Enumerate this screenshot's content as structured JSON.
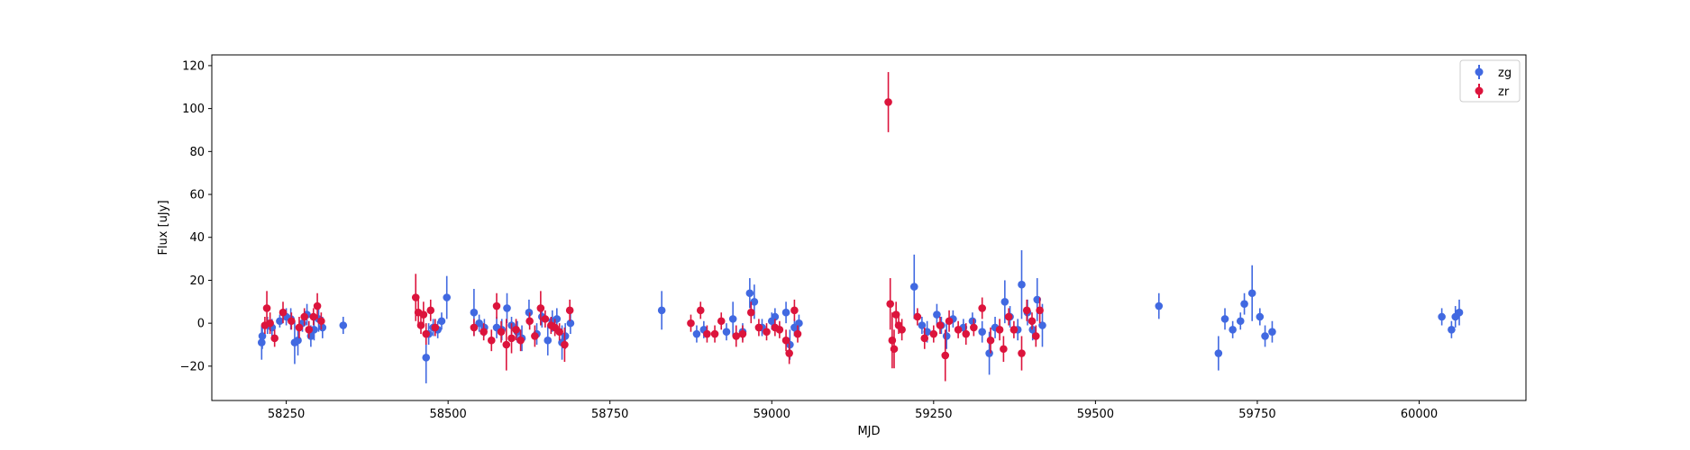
{
  "chart_data": {
    "type": "scatter",
    "title": "",
    "xlabel": "MJD",
    "ylabel": "Flux [uJy]",
    "xlim": [
      58135,
      60165
    ],
    "ylim": [
      -36,
      125
    ],
    "xticks": [
      58250,
      58500,
      58750,
      59000,
      59250,
      59500,
      59750,
      60000
    ],
    "yticks": [
      -20,
      0,
      20,
      40,
      60,
      80,
      100,
      120
    ],
    "grid": false,
    "legend_position": "top-right",
    "error_bars": true,
    "series": [
      {
        "name": "zg",
        "color": "#4169e1",
        "points": [
          [
            58212,
            -9,
            8
          ],
          [
            58213,
            -6,
            6
          ],
          [
            58221,
            -1,
            4
          ],
          [
            58228,
            -2,
            4
          ],
          [
            58240,
            1,
            3
          ],
          [
            58250,
            3,
            4
          ],
          [
            58257,
            2,
            5
          ],
          [
            58263,
            -9,
            10
          ],
          [
            58268,
            -8,
            7
          ],
          [
            58275,
            0,
            4
          ],
          [
            58282,
            4,
            5
          ],
          [
            58288,
            -6,
            5
          ],
          [
            58293,
            -3,
            5
          ],
          [
            58300,
            2,
            6
          ],
          [
            58306,
            -2,
            5
          ],
          [
            58338,
            -1,
            4
          ],
          [
            58466,
            -16,
            12
          ],
          [
            58470,
            -5,
            5
          ],
          [
            58477,
            -2,
            4
          ],
          [
            58484,
            -3,
            4
          ],
          [
            58490,
            1,
            4
          ],
          [
            58498,
            12,
            10
          ],
          [
            58540,
            5,
            11
          ],
          [
            58548,
            0,
            4
          ],
          [
            58556,
            -2,
            4
          ],
          [
            58575,
            -2,
            5
          ],
          [
            58583,
            -3,
            5
          ],
          [
            58591,
            7,
            7
          ],
          [
            58598,
            -1,
            4
          ],
          [
            58607,
            -4,
            5
          ],
          [
            58614,
            -7,
            6
          ],
          [
            58625,
            5,
            6
          ],
          [
            58637,
            -5,
            5
          ],
          [
            58645,
            3,
            5
          ],
          [
            58654,
            -8,
            7
          ],
          [
            58661,
            1,
            5
          ],
          [
            58668,
            2,
            5
          ],
          [
            58676,
            -9,
            8
          ],
          [
            58681,
            -6,
            6
          ],
          [
            58689,
            0,
            5
          ],
          [
            58830,
            6,
            9
          ],
          [
            58884,
            -5,
            4
          ],
          [
            58895,
            -3,
            4
          ],
          [
            58930,
            -4,
            4
          ],
          [
            58940,
            2,
            8
          ],
          [
            58955,
            -4,
            4
          ],
          [
            58966,
            14,
            7
          ],
          [
            58973,
            10,
            8
          ],
          [
            58985,
            -2,
            4
          ],
          [
            59000,
            1,
            4
          ],
          [
            59005,
            3,
            4
          ],
          [
            59022,
            5,
            5
          ],
          [
            59028,
            -10,
            7
          ],
          [
            59035,
            -2,
            4
          ],
          [
            59042,
            0,
            4
          ],
          [
            59220,
            17,
            15
          ],
          [
            59232,
            -1,
            4
          ],
          [
            59240,
            -4,
            5
          ],
          [
            59255,
            4,
            5
          ],
          [
            59262,
            -1,
            4
          ],
          [
            59270,
            -6,
            6
          ],
          [
            59280,
            2,
            4
          ],
          [
            59296,
            -2,
            4
          ],
          [
            59310,
            1,
            4
          ],
          [
            59325,
            -4,
            5
          ],
          [
            59336,
            -14,
            10
          ],
          [
            59345,
            -2,
            5
          ],
          [
            59360,
            10,
            10
          ],
          [
            59368,
            3,
            5
          ],
          [
            59380,
            -3,
            5
          ],
          [
            59386,
            18,
            16
          ],
          [
            59395,
            5,
            6
          ],
          [
            59403,
            -3,
            5
          ],
          [
            59410,
            11,
            10
          ],
          [
            59418,
            -1,
            10
          ],
          [
            59598,
            8,
            6
          ],
          [
            59690,
            -14,
            8
          ],
          [
            59700,
            2,
            5
          ],
          [
            59712,
            -3,
            4
          ],
          [
            59724,
            1,
            4
          ],
          [
            59730,
            9,
            5
          ],
          [
            59742,
            14,
            13
          ],
          [
            59754,
            3,
            4
          ],
          [
            59762,
            -6,
            5
          ],
          [
            59773,
            -4,
            5
          ],
          [
            60035,
            3,
            4
          ],
          [
            60050,
            -3,
            4
          ],
          [
            60056,
            3,
            5
          ],
          [
            60062,
            5,
            6
          ]
        ]
      },
      {
        "name": "zr",
        "color": "#dc143c",
        "points": [
          [
            58217,
            -1,
            4
          ],
          [
            58220,
            7,
            8
          ],
          [
            58225,
            0,
            5
          ],
          [
            58232,
            -7,
            4
          ],
          [
            58245,
            5,
            5
          ],
          [
            58258,
            1,
            4
          ],
          [
            58270,
            -2,
            5
          ],
          [
            58278,
            3,
            4
          ],
          [
            58285,
            -3,
            4
          ],
          [
            58292,
            3,
            4
          ],
          [
            58298,
            8,
            6
          ],
          [
            58304,
            1,
            4
          ],
          [
            58450,
            12,
            11
          ],
          [
            58454,
            5,
            7
          ],
          [
            58458,
            -1,
            4
          ],
          [
            58462,
            4,
            6
          ],
          [
            58466,
            -5,
            5
          ],
          [
            58473,
            6,
            5
          ],
          [
            58480,
            -2,
            4
          ],
          [
            58540,
            -2,
            4
          ],
          [
            58555,
            -4,
            4
          ],
          [
            58567,
            -8,
            5
          ],
          [
            58575,
            8,
            6
          ],
          [
            58582,
            -4,
            5
          ],
          [
            58590,
            -10,
            12
          ],
          [
            58598,
            -7,
            7
          ],
          [
            58605,
            -3,
            5
          ],
          [
            58612,
            -8,
            5
          ],
          [
            58626,
            1,
            4
          ],
          [
            58634,
            -6,
            5
          ],
          [
            58643,
            7,
            8
          ],
          [
            58650,
            2,
            4
          ],
          [
            58659,
            -1,
            4
          ],
          [
            58665,
            -2,
            4
          ],
          [
            58672,
            -4,
            4
          ],
          [
            58680,
            -10,
            8
          ],
          [
            58688,
            6,
            5
          ],
          [
            58875,
            0,
            4
          ],
          [
            58890,
            6,
            4
          ],
          [
            58900,
            -5,
            4
          ],
          [
            58912,
            -5,
            4
          ],
          [
            58922,
            1,
            4
          ],
          [
            58945,
            -6,
            5
          ],
          [
            58955,
            -5,
            4
          ],
          [
            58968,
            5,
            5
          ],
          [
            58980,
            -2,
            4
          ],
          [
            58992,
            -4,
            4
          ],
          [
            59005,
            -2,
            4
          ],
          [
            59012,
            -3,
            4
          ],
          [
            59022,
            -8,
            5
          ],
          [
            59027,
            -14,
            5
          ],
          [
            59035,
            6,
            5
          ],
          [
            59040,
            -5,
            4
          ],
          [
            59180,
            103,
            14
          ],
          [
            59183,
            9,
            12
          ],
          [
            59186,
            -8,
            13
          ],
          [
            59189,
            -12,
            9
          ],
          [
            59192,
            4,
            6
          ],
          [
            59196,
            -1,
            4
          ],
          [
            59201,
            -3,
            5
          ],
          [
            59225,
            3,
            4
          ],
          [
            59236,
            -7,
            5
          ],
          [
            59250,
            -5,
            4
          ],
          [
            59260,
            -1,
            4
          ],
          [
            59268,
            -15,
            12
          ],
          [
            59274,
            1,
            5
          ],
          [
            59288,
            -3,
            4
          ],
          [
            59300,
            -5,
            5
          ],
          [
            59312,
            -2,
            4
          ],
          [
            59325,
            7,
            5
          ],
          [
            59338,
            -8,
            6
          ],
          [
            59352,
            -3,
            5
          ],
          [
            59358,
            -12,
            6
          ],
          [
            59366,
            3,
            4
          ],
          [
            59374,
            -3,
            4
          ],
          [
            59386,
            -14,
            8
          ],
          [
            59394,
            6,
            5
          ],
          [
            59402,
            1,
            4
          ],
          [
            59408,
            -6,
            5
          ],
          [
            59414,
            6,
            6
          ]
        ]
      }
    ],
    "legend": [
      {
        "name": "zg",
        "color": "#4169e1"
      },
      {
        "name": "zr",
        "color": "#dc143c"
      }
    ]
  }
}
